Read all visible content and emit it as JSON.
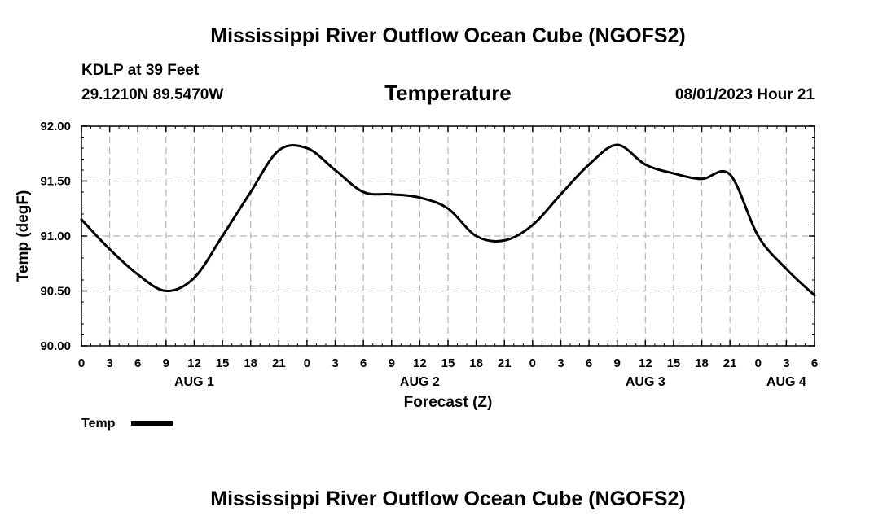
{
  "header": {
    "title": "Mississippi River Outflow Ocean Cube (NGOFS2)",
    "station": "KDLP at 39 Feet",
    "coords": "29.1210N  89.5470W",
    "subtitle": "Temperature",
    "datetime": "08/01/2023 Hour 21",
    "footer_title": "Mississippi River Outflow Ocean Cube (NGOFS2)"
  },
  "chart_data": {
    "type": "line",
    "title": "Temperature",
    "xlabel": "Forecast (Z)",
    "ylabel": "Temp (degF)",
    "ylim": [
      90.0,
      92.0
    ],
    "xlim": [
      0,
      78
    ],
    "grid": true,
    "y_ticks": [
      90.0,
      90.5,
      91.0,
      91.5,
      92.0
    ],
    "y_tick_labels": [
      "90.00",
      "90.50",
      "91.00",
      "91.50",
      "92.00"
    ],
    "x_tick_hours": [
      0,
      3,
      6,
      9,
      12,
      15,
      18,
      21,
      24,
      27,
      30,
      33,
      36,
      39,
      42,
      45,
      48,
      51,
      54,
      57,
      60,
      63,
      66,
      69,
      72,
      75,
      78
    ],
    "x_tick_labels": [
      "0",
      "3",
      "6",
      "9",
      "12",
      "15",
      "18",
      "21",
      "0",
      "3",
      "6",
      "9",
      "12",
      "15",
      "18",
      "21",
      "0",
      "3",
      "6",
      "9",
      "12",
      "15",
      "18",
      "21",
      "0",
      "3",
      "6"
    ],
    "day_labels": [
      {
        "label": "AUG 1",
        "hour": 12
      },
      {
        "label": "AUG 2",
        "hour": 36
      },
      {
        "label": "AUG 3",
        "hour": 60
      },
      {
        "label": "AUG 4",
        "hour": 75
      }
    ],
    "legend": {
      "label": "Temp",
      "position": "bottom-left"
    },
    "series": [
      {
        "name": "Temp",
        "x": [
          0,
          3,
          6,
          9,
          12,
          15,
          18,
          21,
          24,
          27,
          30,
          33,
          36,
          39,
          42,
          45,
          48,
          51,
          54,
          57,
          60,
          63,
          66,
          69,
          72,
          75,
          78
        ],
        "values": [
          91.15,
          90.88,
          90.65,
          90.5,
          90.62,
          91.0,
          91.4,
          91.78,
          91.8,
          91.6,
          91.4,
          91.38,
          91.35,
          91.25,
          91.0,
          90.96,
          91.1,
          91.38,
          91.65,
          91.83,
          91.65,
          91.57,
          91.52,
          91.56,
          91.0,
          90.7,
          90.46
        ]
      }
    ]
  }
}
